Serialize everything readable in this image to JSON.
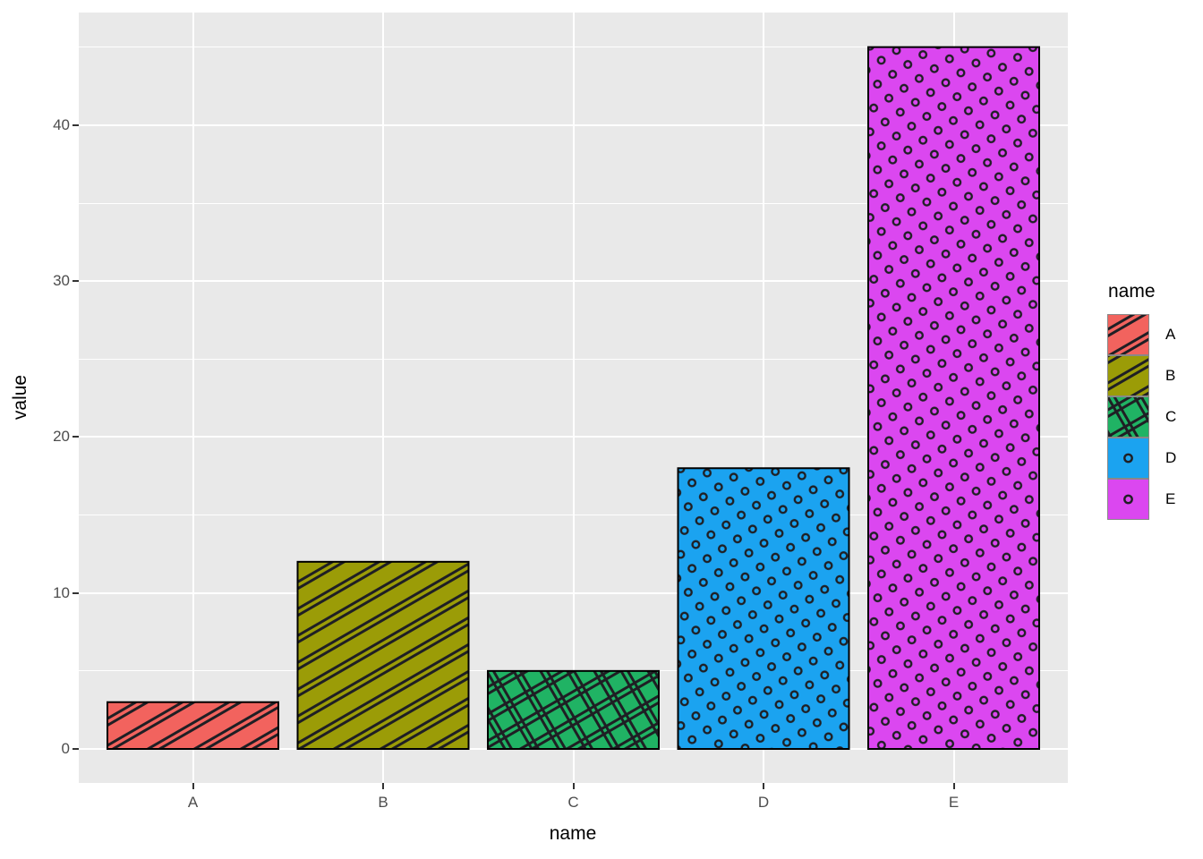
{
  "chart_data": {
    "type": "bar",
    "title": "",
    "xlabel": "name",
    "ylabel": "value",
    "categories": [
      "A",
      "B",
      "C",
      "D",
      "E"
    ],
    "values": [
      3,
      12,
      5,
      18,
      45
    ],
    "y_tick_labels": [
      "0",
      "10",
      "20",
      "30",
      "40"
    ],
    "y_ticks": [
      0,
      10,
      20,
      30,
      40
    ],
    "y_minor_ticks": [
      5,
      15,
      25,
      35,
      45
    ],
    "ylim": [
      0,
      45
    ],
    "grid": true,
    "legend_position": "right",
    "bars": [
      {
        "name": "A",
        "value": 3,
        "fill": "#F2635E",
        "pattern": "stripe"
      },
      {
        "name": "B",
        "value": 12,
        "fill": "#9B9C07",
        "pattern": "stripe"
      },
      {
        "name": "C",
        "value": 5,
        "fill": "#20B364",
        "pattern": "crosshatch"
      },
      {
        "name": "D",
        "value": 18,
        "fill": "#1BA3F0",
        "pattern": "circle"
      },
      {
        "name": "E",
        "value": 45,
        "fill": "#DB47F0",
        "pattern": "circle"
      }
    ]
  },
  "legend": {
    "title": "name",
    "items": [
      {
        "label": "A",
        "fill": "#F2635E",
        "pattern": "stripe"
      },
      {
        "label": "B",
        "fill": "#9B9C07",
        "pattern": "stripe"
      },
      {
        "label": "C",
        "fill": "#20B364",
        "pattern": "crosshatch"
      },
      {
        "label": "D",
        "fill": "#1BA3F0",
        "pattern": "circle"
      },
      {
        "label": "E",
        "fill": "#DB47F0",
        "pattern": "circle"
      }
    ]
  },
  "colors": {
    "figure_bg": "#FFFFFF",
    "panel_bg": "#E9E9E9",
    "grid": "#FFFFFF",
    "tick_label": "#4D4D4D",
    "axis_title": "#000000",
    "bar_outline": "#000000",
    "pattern_line": "#1F1F24",
    "legend_key_border": "#888888"
  }
}
